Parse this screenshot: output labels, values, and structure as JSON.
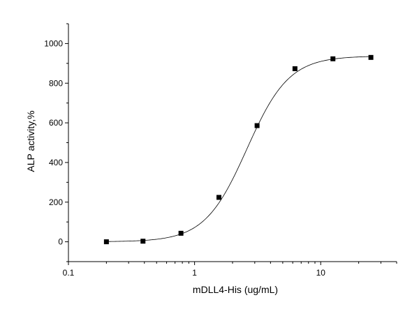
{
  "chart_data": {
    "type": "scatter",
    "title": "",
    "xlabel": "mDLL4-His (ug/mL)",
    "ylabel": "ALP activity,%",
    "x_scale": "log",
    "xlim": [
      0.1,
      40
    ],
    "ylim": [
      -100,
      1100
    ],
    "x_ticks": [
      0.1,
      1,
      10
    ],
    "x_tick_labels": [
      "0.1",
      "1",
      "10"
    ],
    "y_ticks": [
      0,
      200,
      400,
      600,
      800,
      1000
    ],
    "y_tick_labels": [
      "0",
      "200",
      "400",
      "600",
      "800",
      "1000"
    ],
    "grid": false,
    "legend": "none",
    "series": [
      {
        "x": [
          0.2,
          0.39,
          0.78,
          1.56,
          3.13,
          6.25,
          12.5,
          25
        ],
        "y": [
          0,
          3,
          43,
          224,
          586,
          873,
          923,
          930
        ],
        "marker": "square",
        "color": "#000000"
      }
    ],
    "fit": {
      "type": "4PL",
      "bottom": 0,
      "top": 937,
      "ec50": 2.6,
      "hill": 2.6
    }
  }
}
